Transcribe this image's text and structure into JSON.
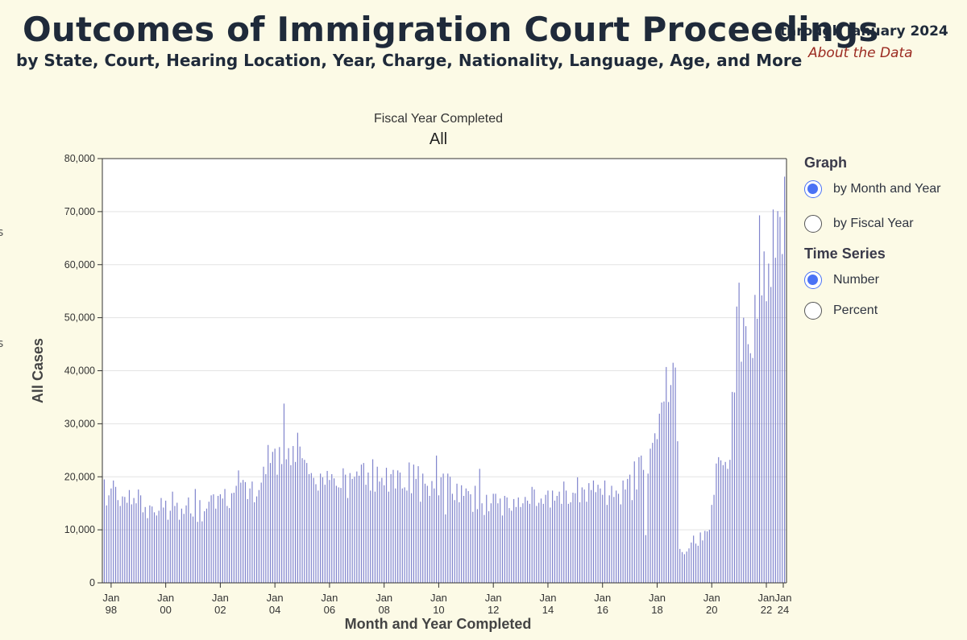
{
  "header": {
    "title": "Outcomes of Immigration Court Proceedings",
    "subtitle": "by State, Court, Hearing Location, Year, Charge, Nationality, Language, Age, and More",
    "through": "through January 2024",
    "about_link": "About the Data"
  },
  "edge_marks": [
    "s",
    "s"
  ],
  "filter": {
    "label": "Fiscal Year Completed",
    "value": "All"
  },
  "controls": {
    "graph": {
      "heading": "Graph",
      "options": [
        {
          "label": "by Month and Year",
          "selected": true
        },
        {
          "label": "by Fiscal Year",
          "selected": false
        }
      ]
    },
    "time_series": {
      "heading": "Time Series",
      "options": [
        {
          "label": "Number",
          "selected": true
        },
        {
          "label": "Percent",
          "selected": false
        }
      ]
    }
  },
  "chart_data": {
    "type": "bar",
    "title": "",
    "xlabel": "Month and Year Completed",
    "ylabel": "All Cases",
    "ylim": [
      0,
      80000
    ],
    "yticks": [
      0,
      10000,
      20000,
      30000,
      40000,
      50000,
      60000,
      70000,
      80000
    ],
    "ytick_labels": [
      "0",
      "10,000",
      "20,000",
      "30,000",
      "40,000",
      "50,000",
      "60,000",
      "70,000",
      "80,000"
    ],
    "xtick_labels": [
      [
        "Jan",
        "98"
      ],
      [
        "Jan",
        "00"
      ],
      [
        "Jan",
        "02"
      ],
      [
        "Jan",
        "04"
      ],
      [
        "Jan",
        "06"
      ],
      [
        "Jan",
        "08"
      ],
      [
        "Jan",
        "10"
      ],
      [
        "Jan",
        "12"
      ],
      [
        "Jan",
        "14"
      ],
      [
        "Jan",
        "16"
      ],
      [
        "Jan",
        "18"
      ],
      [
        "Jan",
        "20"
      ],
      [
        "Jan",
        "22"
      ],
      [
        "Jan",
        "24"
      ]
    ],
    "grid": true,
    "bar_color": "#8b8fd0",
    "x_start": "Oct 1997",
    "x_end": "Jan 2024",
    "series": [
      {
        "name": "All Cases",
        "values": [
          19500,
          14600,
          16500,
          17800,
          19300,
          18100,
          15600,
          14500,
          16300,
          16200,
          15100,
          17500,
          14800,
          16000,
          15000,
          17600,
          16500,
          13300,
          14300,
          12200,
          14600,
          14400,
          13300,
          12700,
          13600,
          16000,
          14200,
          15500,
          11900,
          13600,
          17200,
          14500,
          15100,
          11900,
          14000,
          13000,
          14600,
          16100,
          13100,
          12500,
          17700,
          11500,
          15600,
          11600,
          13500,
          14000,
          15300,
          16500,
          16700,
          14000,
          16400,
          16700,
          15900,
          17700,
          14500,
          14100,
          16900,
          17000,
          18300,
          21200,
          18900,
          19400,
          19000,
          15800,
          17800,
          19100,
          15200,
          16300,
          17500,
          18900,
          21900,
          20500,
          26000,
          22600,
          24700,
          25300,
          20400,
          25600,
          22400,
          33800,
          23300,
          25400,
          22200,
          25800,
          22800,
          28300,
          25700,
          23500,
          23200,
          22600,
          20500,
          20700,
          19800,
          18600,
          17400,
          20600,
          19900,
          18500,
          21100,
          19400,
          20500,
          19700,
          18300,
          18000,
          17900,
          21600,
          20400,
          16000,
          20700,
          19600,
          20000,
          21000,
          20200,
          22300,
          22600,
          18500,
          20800,
          17400,
          23300,
          17200,
          21900,
          19100,
          19800,
          18400,
          21700,
          17200,
          20500,
          21300,
          17800,
          21200,
          20800,
          17800,
          18000,
          17400,
          22700,
          16900,
          22300,
          19600,
          22000,
          15300,
          20600,
          18700,
          18300,
          16400,
          19200,
          17800,
          24000,
          16500,
          19900,
          20600,
          12900,
          20600,
          20000,
          16800,
          15600,
          18700,
          15200,
          18400,
          16400,
          17800,
          17300,
          16700,
          13400,
          18300,
          13900,
          21500,
          15000,
          12800,
          16600,
          13500,
          15000,
          16800,
          16800,
          15000,
          15900,
          12700,
          16400,
          16100,
          14100,
          13600,
          15800,
          14300,
          16100,
          14300,
          15000,
          16200,
          15500,
          14900,
          18100,
          17600,
          14500,
          15100,
          15900,
          14900,
          16600,
          17400,
          14200,
          17400,
          15500,
          16400,
          17200,
          14900,
          19100,
          17400,
          14900,
          15200,
          17000,
          16900,
          19900,
          15200,
          18000,
          17600,
          15300,
          18800,
          17500,
          19300,
          17100,
          18500,
          17800,
          16600,
          19300,
          14700,
          16500,
          18300,
          16200,
          17400,
          16800,
          14800,
          19300,
          17600,
          19600,
          20400,
          15600,
          22900,
          17600,
          23700,
          24000,
          21300,
          9000,
          20600,
          25300,
          26400,
          28200,
          27100,
          31900,
          34000,
          34200,
          40700,
          34100,
          37300,
          41500,
          40600,
          26700,
          6400,
          5800,
          5400,
          5900,
          6500,
          7600,
          8900,
          7400,
          7000,
          9500,
          8000,
          9800,
          9700,
          10000,
          14700,
          16600,
          22500,
          23700,
          23100,
          22200,
          22800,
          21500,
          23200,
          36000,
          35900,
          52100,
          56600,
          41700,
          50000,
          48400,
          45000,
          43300,
          42400,
          54300,
          49800,
          69300,
          54200,
          62500,
          53100,
          60200,
          55800,
          70400,
          61300,
          70100,
          69000,
          62000,
          76600
        ]
      }
    ]
  }
}
